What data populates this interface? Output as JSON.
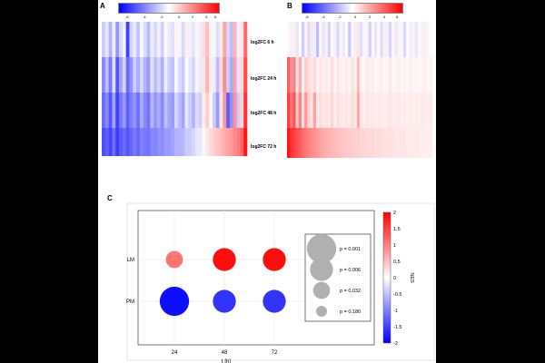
{
  "panels": {
    "a": {
      "letter": "A"
    },
    "b": {
      "letter": "B"
    },
    "c": {
      "letter": "C"
    }
  },
  "heatmap_colorbar_ticks": [
    "-6",
    "-4",
    "-2",
    "0",
    "2",
    "4",
    "6"
  ],
  "colors": {
    "neg": "#0000ff",
    "mid": "#ffffff",
    "pos": "#ff0000",
    "legend_circle": "#b0b0b0"
  },
  "chart_data": [
    {
      "type": "heatmap",
      "panel": "A",
      "rows": [
        "log2FC 6 h",
        "log2FC 24 h",
        "log2FC 48 h",
        "log2FC 72 h"
      ],
      "color_scale": {
        "min": -6,
        "max": 6
      },
      "n_columns": 42,
      "values": [
        [
          -1.2,
          -0.6,
          -1.8,
          -0.4,
          -2.5,
          -0.9,
          -0.3,
          -4.5,
          -1.0,
          -0.5,
          -1.4,
          -0.2,
          -0.8,
          -1.6,
          -0.4,
          -0.9,
          -0.3,
          -1.1,
          0.2,
          -0.5,
          -0.7,
          0.3,
          -0.2,
          -0.9,
          0.4,
          -0.3,
          -0.6,
          0.2,
          -0.4,
          0.8,
          1.5,
          0.3,
          -0.2,
          -0.8,
          0.5,
          2.2,
          -0.9,
          -1.5,
          1.8,
          -0.3,
          0.6,
          3.5
        ],
        [
          -2.8,
          -1.5,
          -3.2,
          -0.8,
          -4.0,
          -2.2,
          -1.0,
          -3.5,
          -2.5,
          -1.2,
          -2.0,
          -0.9,
          -1.8,
          -2.4,
          -0.7,
          -1.6,
          -1.0,
          -1.9,
          -0.4,
          -1.2,
          -1.5,
          -0.2,
          -0.8,
          -1.3,
          0.1,
          -0.6,
          -1.0,
          -0.2,
          -0.5,
          0.6,
          1.8,
          0.4,
          -0.4,
          -1.6,
          0.8,
          2.8,
          -1.2,
          -2.0,
          2.2,
          -0.6,
          0.9,
          4.2
        ],
        [
          -3.5,
          -2.8,
          -4.0,
          -2.2,
          -4.5,
          -3.2,
          -2.4,
          -3.8,
          -3.0,
          -2.6,
          -3.4,
          -2.0,
          -2.8,
          -3.3,
          -1.8,
          -2.5,
          -2.0,
          -2.8,
          -1.5,
          -2.1,
          -2.4,
          -1.0,
          -1.6,
          -2.2,
          -0.6,
          -1.2,
          -1.8,
          -0.8,
          -1.1,
          0.4,
          1.2,
          0.2,
          -1.2,
          -2.4,
          0.6,
          2.4,
          -3.8,
          -2.6,
          2.6,
          -1.2,
          1.0,
          4.8
        ],
        [
          -4.2,
          -3.8,
          -4.4,
          -3.4,
          -4.6,
          -3.9,
          -3.5,
          -4.0,
          -3.6,
          -3.2,
          -3.6,
          -3.0,
          -3.2,
          -3.3,
          -2.8,
          -2.9,
          -2.6,
          -2.7,
          -2.3,
          -2.4,
          -2.2,
          -1.8,
          -1.8,
          -1.7,
          -1.2,
          -1.2,
          -1.0,
          -0.6,
          -0.5,
          0.2,
          0.6,
          0.9,
          1.1,
          1.4,
          1.6,
          1.9,
          2.2,
          2.4,
          2.8,
          3.1,
          3.6,
          5.5
        ]
      ]
    },
    {
      "type": "heatmap",
      "panel": "B",
      "rows": [
        "log2FC 6 h",
        "log2FC 24 h",
        "log2FC 48 h",
        "log2FC 72 h"
      ],
      "color_scale": {
        "min": -6,
        "max": 6
      },
      "n_columns": 50,
      "values": [
        [
          0.2,
          -0.3,
          0.4,
          -0.6,
          0.1,
          -1.2,
          0.3,
          -0.8,
          0.5,
          -0.4,
          -1.5,
          0.2,
          -0.6,
          0.4,
          -1.0,
          0.2,
          -0.3,
          -0.9,
          0.3,
          -0.5,
          0.1,
          -1.3,
          0.2,
          -0.4,
          0.6,
          -0.7,
          -0.2,
          0.3,
          -1.1,
          0.2,
          -0.6,
          0.1,
          -0.8,
          0.4,
          -0.3,
          -1.0,
          0.2,
          -0.5,
          0.3,
          -0.2,
          -0.9,
          0.1,
          -0.4,
          0.3,
          -0.6,
          0.2,
          -0.3,
          0.4,
          -0.2,
          0.1
        ],
        [
          3.8,
          2.5,
          3.0,
          0.6,
          2.0,
          0.4,
          1.2,
          0.8,
          0.5,
          0.9,
          0.3,
          0.6,
          0.4,
          0.5,
          0.3,
          0.8,
          0.2,
          0.6,
          0.4,
          0.3,
          0.5,
          0.2,
          0.7,
          0.3,
          1.6,
          0.4,
          0.2,
          0.5,
          0.3,
          0.4,
          0.2,
          0.3,
          0.4,
          0.2,
          0.3,
          0.5,
          0.2,
          0.3,
          0.4,
          0.2,
          0.3,
          0.2,
          0.4,
          0.2,
          0.3,
          0.2,
          0.3,
          0.4,
          0.2,
          0.3
        ],
        [
          4.5,
          3.2,
          4.0,
          1.2,
          3.0,
          0.8,
          2.5,
          1.0,
          0.7,
          2.2,
          0.5,
          0.8,
          0.6,
          0.7,
          0.5,
          1.0,
          0.4,
          0.8,
          0.6,
          0.5,
          0.6,
          0.4,
          0.8,
          0.5,
          2.0,
          0.6,
          0.4,
          0.6,
          0.5,
          0.5,
          0.4,
          0.5,
          0.5,
          0.4,
          0.5,
          0.6,
          0.4,
          0.5,
          0.5,
          0.4,
          0.5,
          0.4,
          0.5,
          0.4,
          0.5,
          0.4,
          0.5,
          0.5,
          0.4,
          0.5
        ],
        [
          5.5,
          4.8,
          4.5,
          4.2,
          3.8,
          3.5,
          3.2,
          3.0,
          2.8,
          2.6,
          2.4,
          2.2,
          2.0,
          1.9,
          1.8,
          1.7,
          1.6,
          1.5,
          1.4,
          1.3,
          1.3,
          1.2,
          1.2,
          1.1,
          1.1,
          1.0,
          1.0,
          0.9,
          0.9,
          0.9,
          0.8,
          0.8,
          0.8,
          0.7,
          0.7,
          0.7,
          0.7,
          0.6,
          0.6,
          0.6,
          0.6,
          0.5,
          0.5,
          0.5,
          0.5,
          0.5,
          0.4,
          0.4,
          0.4,
          0.4
        ]
      ]
    },
    {
      "type": "scatter",
      "panel": "C",
      "subtype": "bubble",
      "x": [
        24,
        48,
        72
      ],
      "categories": [
        "LM",
        "PM"
      ],
      "xlabel": "t [h]",
      "ylabel": "",
      "xticks": [
        "24",
        "48",
        "72"
      ],
      "series": [
        {
          "name": "LM",
          "nes": [
            1.1,
            1.9,
            1.9
          ],
          "p": [
            0.032,
            0.006,
            0.006
          ]
        },
        {
          "name": "PM",
          "nes": [
            -1.9,
            -1.6,
            -1.6
          ],
          "p": [
            0.001,
            0.006,
            0.006
          ]
        }
      ],
      "size_legend": [
        {
          "label": "p = 0.001",
          "p": 0.001
        },
        {
          "label": "p = 0.006",
          "p": 0.006
        },
        {
          "label": "p = 0.032",
          "p": 0.032
        },
        {
          "label": "p = 0.180",
          "p": 0.18
        }
      ],
      "colorbar": {
        "label": "NES",
        "min": -2,
        "max": 2,
        "ticks": [
          "2",
          "1.5",
          "1",
          "0.5",
          "0",
          "-0.5",
          "-1",
          "-1.5",
          "-2"
        ]
      }
    }
  ]
}
